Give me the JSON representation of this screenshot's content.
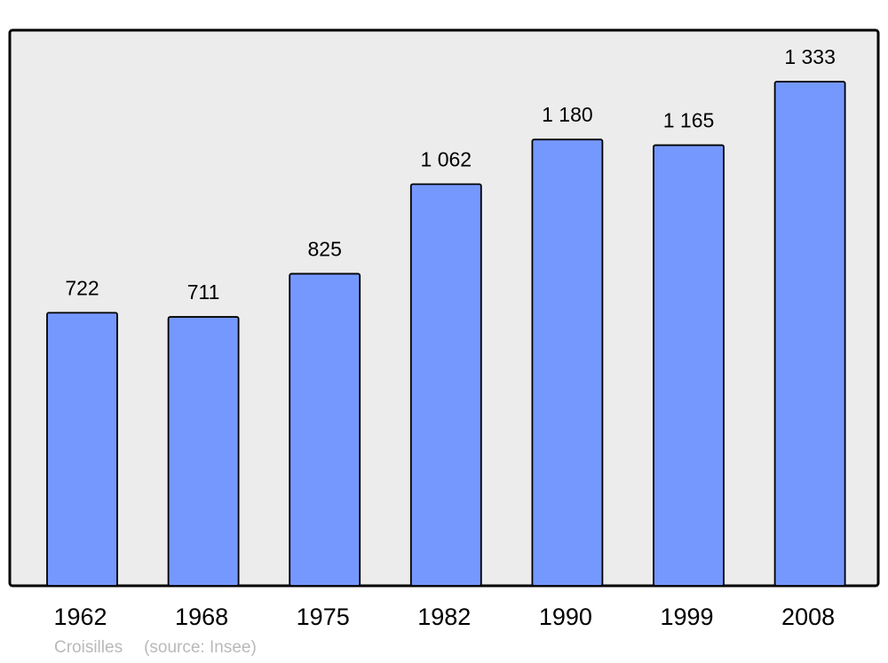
{
  "chart_data": {
    "type": "bar",
    "categories": [
      "1962",
      "1968",
      "1975",
      "1982",
      "1990",
      "1999",
      "2008"
    ],
    "values": [
      722,
      711,
      825,
      1062,
      1180,
      1165,
      1333
    ],
    "data_labels": [
      "722",
      "711",
      "825",
      "1 062",
      "1 180",
      "1 165",
      "1 333"
    ],
    "title": "",
    "xlabel": "",
    "ylabel": "",
    "ylim": [
      0,
      1470
    ],
    "grid": false,
    "bar_color": "#7598ff",
    "background_color": "#ececec"
  },
  "footer": {
    "place": "Croisilles",
    "source": "(source: Insee)"
  }
}
